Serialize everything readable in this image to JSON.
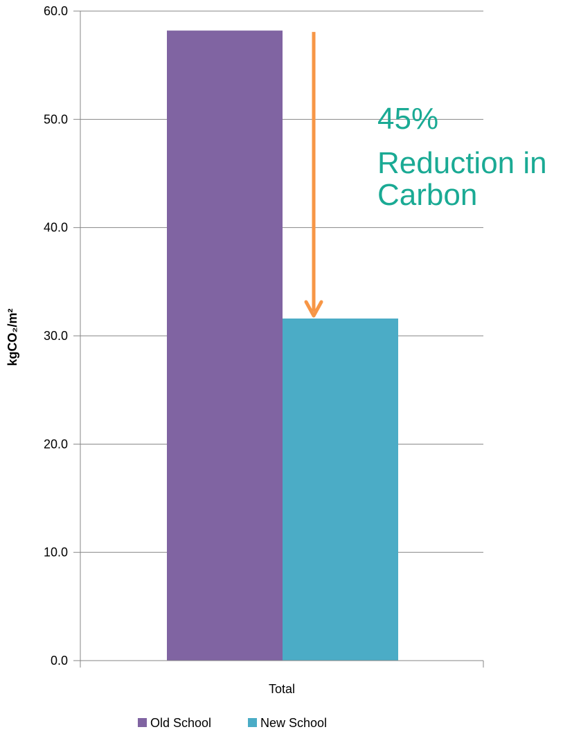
{
  "chart_data": {
    "type": "bar",
    "categories": [
      "Total"
    ],
    "series": [
      {
        "name": "Old School",
        "values": [
          58.2
        ],
        "color": "#8064A2"
      },
      {
        "name": "New School",
        "values": [
          31.6
        ],
        "color": "#4BACC6"
      }
    ],
    "ylabel": "kgCO₂/m²",
    "xlabel": "",
    "ylim": [
      0,
      60
    ],
    "yticks": [
      0,
      10,
      20,
      30,
      40,
      50,
      60
    ],
    "ytick_labels": [
      "0.0",
      "10.0",
      "20.0",
      "30.0",
      "40.0",
      "50.0",
      "60.0"
    ],
    "grid": true,
    "legend_position": "bottom",
    "annotation": {
      "lines": [
        "45%",
        "Reduction in",
        "Carbon"
      ],
      "text_color": "#1AAA94",
      "arrow_color": "#F79646",
      "arrow_from_value": 58.2,
      "arrow_to_value": 31.6
    }
  }
}
